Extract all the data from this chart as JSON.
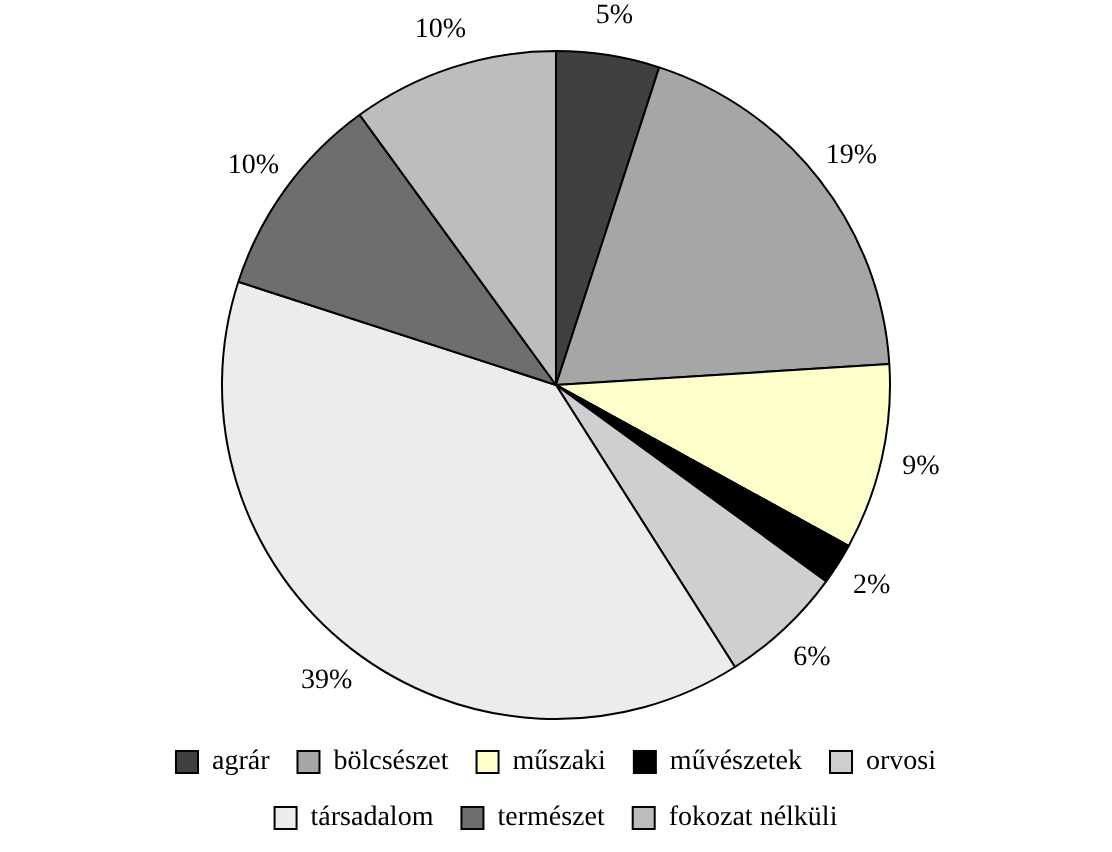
{
  "chart_data": {
    "type": "pie",
    "categories": [
      "agrár",
      "bölcsészet",
      "műszaki",
      "művészetek",
      "orvosi",
      "társadalom",
      "természet",
      "fokozat nélküli"
    ],
    "values": [
      5,
      19,
      9,
      2,
      6,
      39,
      10,
      10
    ],
    "value_labels": [
      "5%",
      "19%",
      "9%",
      "2%",
      "6%",
      "39%",
      "10%",
      "10%"
    ],
    "colors": [
      "#404040",
      "#a6a6a6",
      "#ffffcc",
      "#000000",
      "#cfcfcf",
      "#ececec",
      "#6e6e6e",
      "#bdbdbd"
    ],
    "legend": "bottom"
  }
}
